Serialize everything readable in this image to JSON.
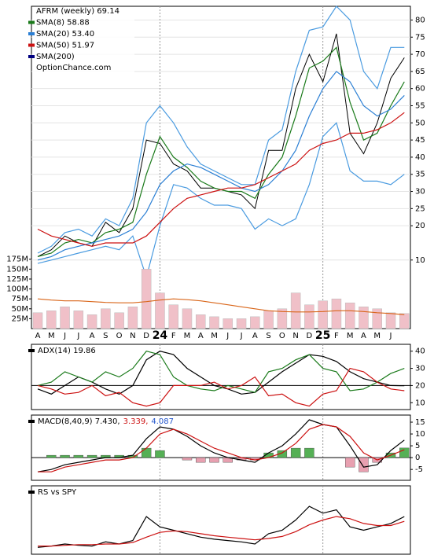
{
  "chart_data": [
    {
      "type": "line",
      "title": "AFRM (weekly) 69.14",
      "annotation": "OptionChance.com",
      "categories": [
        "A",
        "M",
        "J",
        "J",
        "A",
        "S",
        "O",
        "N",
        "D",
        "24",
        "F",
        "M",
        "A",
        "M",
        "J",
        "J",
        "A",
        "S",
        "O",
        "N",
        "D",
        "25",
        "F",
        "M",
        "A",
        "M",
        "J",
        null
      ],
      "ylim": [
        -10,
        84
      ],
      "yticks": [
        10,
        20,
        25,
        30,
        35,
        40,
        45,
        50,
        55,
        60,
        65,
        70,
        75,
        80
      ],
      "grid": true,
      "series": [
        {
          "name": "Close",
          "color": "#000000",
          "values": [
            11,
            13,
            17,
            15,
            14,
            21,
            18,
            25,
            45,
            44,
            38,
            36,
            31,
            31,
            30,
            29,
            25,
            42,
            42,
            60,
            70,
            62,
            76,
            47,
            41,
            50,
            63,
            69
          ]
        },
        {
          "name": "SMA(8) 58.88",
          "color": "#1a7a1a",
          "values": [
            11,
            12,
            15,
            16,
            15,
            18,
            19,
            21,
            35,
            46,
            40,
            37,
            33,
            31,
            30,
            30,
            28,
            35,
            40,
            52,
            66,
            68,
            72,
            56,
            45,
            47,
            55,
            62
          ]
        },
        {
          "name": "SMA(20) 53.40",
          "color": "#2b7fd4",
          "values": [
            10,
            11,
            13,
            14,
            15,
            16,
            17,
            19,
            24,
            32,
            36,
            38,
            37,
            35,
            33,
            31,
            30,
            32,
            36,
            42,
            52,
            60,
            65,
            62,
            55,
            52,
            54,
            58
          ]
        },
        {
          "name": "SMA(50) 51.97",
          "color": "#cc1111",
          "values": [
            19,
            17,
            16,
            15,
            14,
            15,
            15,
            15,
            17,
            21,
            25,
            28,
            29,
            30,
            31,
            31,
            32,
            34,
            36,
            38,
            42,
            44,
            45,
            47,
            47,
            48,
            50,
            53
          ]
        },
        {
          "name": "SMA(200)",
          "color": "#000080",
          "values": [
            null,
            null,
            null,
            null,
            null,
            null,
            null,
            null,
            null,
            null,
            null,
            null,
            null,
            null,
            null,
            null,
            null,
            null,
            null,
            null,
            null,
            null,
            null,
            null,
            null,
            null,
            null,
            null
          ]
        }
      ],
      "bands": {
        "color": "#4a9be0",
        "upper": [
          12,
          14,
          18,
          19,
          17,
          22,
          20,
          28,
          50,
          55,
          50,
          43,
          38,
          36,
          34,
          32,
          32,
          45,
          48,
          65,
          77,
          78,
          84,
          80,
          65,
          60,
          72,
          72
        ],
        "lower": [
          9,
          10,
          11,
          12,
          13,
          14,
          13,
          17,
          5,
          20,
          32,
          31,
          28,
          26,
          26,
          25,
          19,
          22,
          20,
          22,
          32,
          46,
          50,
          36,
          33,
          33,
          32,
          35
        ]
      }
    },
    {
      "type": "bar",
      "color": "#f0c0c8",
      "avg_color": "#d9661a",
      "ylim": [
        0,
        813
      ],
      "yticks": [
        {
          "value": 25,
          "label": "25M"
        },
        {
          "value": 50,
          "label": "50M"
        },
        {
          "value": 75,
          "label": "75M"
        },
        {
          "value": 100,
          "label": "100M"
        },
        {
          "value": 125,
          "label": "125M"
        },
        {
          "value": 150,
          "label": "150M"
        },
        {
          "value": 175,
          "label": "175M"
        }
      ],
      "values": [
        40,
        45,
        55,
        45,
        35,
        50,
        40,
        55,
        150,
        90,
        60,
        50,
        35,
        30,
        25,
        25,
        30,
        45,
        50,
        90,
        60,
        70,
        75,
        65,
        55,
        50,
        40,
        38
      ],
      "average": [
        75,
        72,
        70,
        70,
        68,
        66,
        65,
        65,
        68,
        72,
        75,
        73,
        70,
        65,
        60,
        55,
        50,
        45,
        43,
        42,
        42,
        43,
        45,
        45,
        43,
        40,
        38,
        35
      ]
    },
    {
      "type": "line",
      "ylim": [
        6,
        44
      ],
      "yticks": [
        10,
        20,
        30,
        40
      ],
      "reference_line": 20,
      "series": [
        {
          "name": "ADX(14) 19.86",
          "color": "#000000",
          "values": [
            18,
            15,
            20,
            25,
            22,
            18,
            15,
            20,
            35,
            40,
            38,
            30,
            25,
            20,
            18,
            15,
            16,
            22,
            28,
            33,
            38,
            37,
            34,
            28,
            24,
            22,
            20,
            19.86
          ]
        },
        {
          "color": "#1a7a1a",
          "values": [
            20,
            22,
            28,
            25,
            22,
            28,
            25,
            30,
            40,
            38,
            25,
            20,
            18,
            17,
            20,
            18,
            16,
            28,
            30,
            35,
            38,
            30,
            28,
            17,
            18,
            22,
            27,
            30
          ]
        },
        {
          "color": "#cc1111",
          "values": [
            20,
            18,
            15,
            16,
            20,
            14,
            16,
            10,
            8,
            10,
            20,
            20,
            20,
            22,
            18,
            20,
            25,
            14,
            15,
            10,
            8,
            15,
            17,
            30,
            28,
            22,
            18,
            17
          ]
        }
      ]
    },
    {
      "type": "line",
      "ylim": [
        -9.6,
        18
      ],
      "yticks": [
        -5,
        0,
        5,
        10,
        15
      ],
      "reference_line": 0,
      "series": [
        {
          "name": "4.087",
          "style": "bar",
          "color": "#55b055",
          "negative_color": "#e8a0b0",
          "label_color": "#2255cc",
          "values": [
            0,
            1,
            1,
            1,
            1,
            1,
            1,
            1,
            4,
            3,
            0,
            -1,
            -2,
            -2,
            -2,
            -1,
            -1,
            2,
            3,
            4,
            4,
            0,
            0,
            -4,
            -6,
            -2,
            2,
            4.087
          ]
        },
        {
          "name": "MACD(8,40,9) 7.430,",
          "color": "#000000",
          "values": [
            -6,
            -5,
            -3,
            -2,
            -1,
            0,
            0,
            1,
            8,
            13,
            12,
            9,
            5,
            2,
            0,
            -1,
            -2,
            2,
            5,
            10,
            16,
            14,
            13,
            5,
            -4,
            -3,
            3,
            7.43
          ]
        },
        {
          "name": "3.339,",
          "color": "#cc1111",
          "values": [
            -6,
            -6,
            -4,
            -3,
            -2,
            -1,
            -1,
            0,
            4,
            10,
            12,
            10,
            7,
            4,
            2,
            0,
            -1,
            0,
            2,
            6,
            12,
            14,
            13,
            9,
            2,
            -1,
            1,
            3.339
          ]
        }
      ]
    },
    {
      "type": "line",
      "title": "RS vs SPY",
      "ylim": [
        0,
        100
      ],
      "yticks": [],
      "series": [
        {
          "color": "#000000",
          "values": [
            10,
            12,
            15,
            13,
            12,
            18,
            15,
            20,
            55,
            40,
            35,
            30,
            25,
            22,
            20,
            18,
            15,
            30,
            35,
            50,
            70,
            60,
            65,
            40,
            35,
            40,
            45,
            55
          ]
        },
        {
          "color": "#cc1111",
          "values": [
            12,
            12,
            13,
            14,
            14,
            15,
            15,
            17,
            25,
            32,
            34,
            33,
            30,
            27,
            25,
            23,
            21,
            23,
            26,
            33,
            43,
            50,
            55,
            52,
            45,
            42,
            42,
            48
          ]
        }
      ]
    }
  ]
}
